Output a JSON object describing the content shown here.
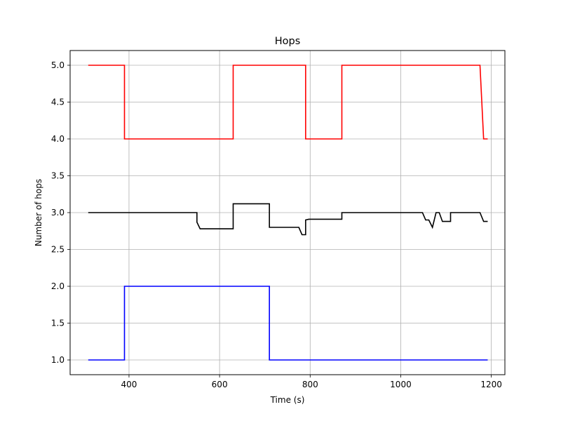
{
  "chart_data": {
    "type": "line",
    "title": "Hops",
    "xlabel": "Time (s)",
    "ylabel": "Number of hops",
    "xlim": [
      270,
      1230
    ],
    "ylim": [
      0.8,
      5.2
    ],
    "xticks": [
      400,
      600,
      800,
      1000,
      1200
    ],
    "xtick_labels": [
      "400",
      "600",
      "800",
      "1000",
      "1200"
    ],
    "yticks": [
      1.0,
      1.5,
      2.0,
      2.5,
      3.0,
      3.5,
      4.0,
      4.5,
      5.0
    ],
    "ytick_labels": [
      "1.0",
      "1.5",
      "2.0",
      "2.5",
      "3.0",
      "3.5",
      "4.0",
      "4.5",
      "5.0"
    ],
    "grid": true,
    "legend": "none",
    "series": [
      {
        "color": "#ff0000",
        "x": [
          310,
          390,
          390,
          630,
          630,
          790,
          790,
          870,
          870,
          1175,
          1183,
          1192
        ],
        "y": [
          5.0,
          5.0,
          4.0,
          4.0,
          5.0,
          5.0,
          4.0,
          4.0,
          5.0,
          5.0,
          4.0,
          4.0
        ]
      },
      {
        "color": "#000000",
        "x": [
          310,
          550,
          550,
          557,
          630,
          630,
          710,
          710,
          775,
          782,
          790,
          790,
          797,
          870,
          870,
          1048,
          1055,
          1062,
          1070,
          1078,
          1085,
          1092,
          1110,
          1110,
          1175,
          1183,
          1192
        ],
        "y": [
          3.0,
          3.0,
          2.87,
          2.78,
          2.78,
          3.12,
          3.12,
          2.8,
          2.8,
          2.7,
          2.7,
          2.9,
          2.91,
          2.91,
          3.0,
          3.0,
          2.9,
          2.9,
          2.8,
          3.0,
          3.0,
          2.88,
          2.88,
          3.0,
          3.0,
          2.88,
          2.88
        ]
      },
      {
        "color": "#0000ff",
        "x": [
          310,
          390,
          390,
          710,
          710,
          1192
        ],
        "y": [
          1.0,
          1.0,
          2.0,
          2.0,
          1.0,
          1.0
        ]
      }
    ]
  }
}
